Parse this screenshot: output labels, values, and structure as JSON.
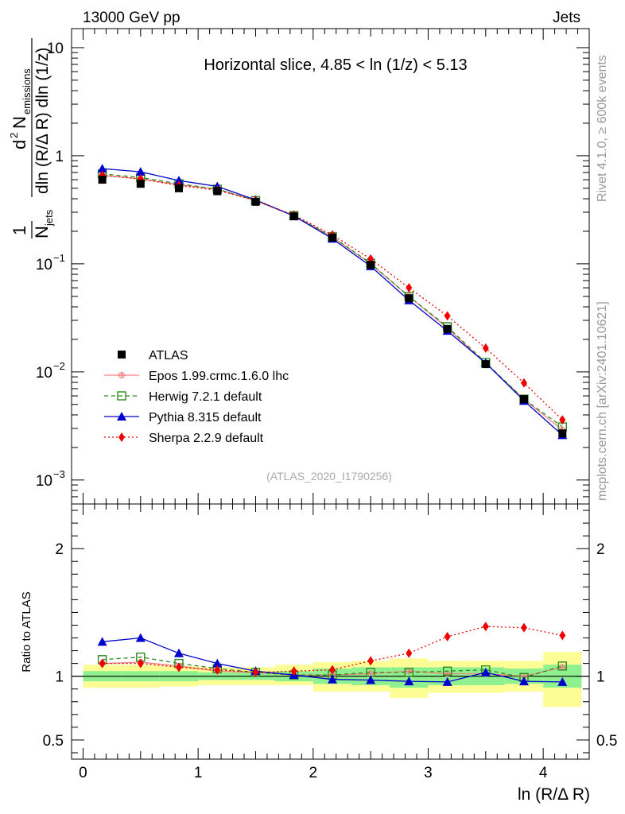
{
  "header": {
    "left": "13000 GeV pp",
    "right": "Jets"
  },
  "side_labels": {
    "rivet": "Rivet 4.1.0, ≥ 600k events",
    "mcplots": "mcplots.cern.ch [arXiv:2401.10621]"
  },
  "chart_data": [
    {
      "type": "line",
      "panel": "main",
      "title": "Horizontal slice, 4.85 < ln (1/z) < 5.13",
      "ylabel": "1/N_jets d²N_emissions / dln (R/Δ R) dln (1/z)",
      "ylabel_parts": {
        "frac": "1",
        "n": "N",
        "jets": "jets",
        "d2": "d",
        "two": "2",
        "nem": "N",
        "em": "emissions",
        "den": "dln (R/Δ R) dln (1/z)"
      },
      "yscale": "log",
      "ylim": [
        0.0006,
        15
      ],
      "xlim": [
        -0.1,
        4.4
      ],
      "yticks": [
        {
          "value": 0.001,
          "base": "10",
          "exp": "−3"
        },
        {
          "value": 0.01,
          "base": "10",
          "exp": "−2"
        },
        {
          "value": 0.1,
          "base": "10",
          "exp": "−1"
        },
        {
          "value": 1,
          "base": "1",
          "exp": ""
        },
        {
          "value": 10,
          "base": "10",
          "exp": ""
        }
      ],
      "watermark": "(ATLAS_2020_I1790256)",
      "x": [
        0.167,
        0.5,
        0.833,
        1.167,
        1.5,
        1.833,
        2.167,
        2.5,
        2.833,
        3.167,
        3.5,
        3.833,
        4.167
      ],
      "series": [
        {
          "name": "ATLAS",
          "color": "#000000",
          "marker": "square",
          "line": "none",
          "values": [
            0.6,
            0.55,
            0.5,
            0.47,
            0.375,
            0.275,
            0.175,
            0.098,
            0.048,
            0.025,
            0.0118,
            0.0056,
            0.0027
          ]
        },
        {
          "name": "Epos 1.99.crmc.1.6.0 lhc",
          "color": "#f08080",
          "marker": "plus",
          "line": "solid",
          "values": [
            0.66,
            0.61,
            0.54,
            0.49,
            0.385,
            0.278,
            0.177,
            0.1,
            0.05,
            0.0255,
            0.012,
            0.0056,
            0.0029
          ]
        },
        {
          "name": "Herwig 7.2.1 default",
          "color": "#2e8b1e",
          "marker": "open-square",
          "line": "dashed",
          "values": [
            0.68,
            0.63,
            0.55,
            0.49,
            0.385,
            0.279,
            0.178,
            0.101,
            0.05,
            0.0262,
            0.0122,
            0.0056,
            0.0031
          ]
        },
        {
          "name": "Pythia 8.315 default",
          "color": "#0000cc",
          "marker": "triangle",
          "line": "solid",
          "values": [
            0.76,
            0.71,
            0.59,
            0.52,
            0.39,
            0.277,
            0.171,
            0.095,
            0.046,
            0.024,
            0.0121,
            0.0054,
            0.0026
          ]
        },
        {
          "name": "Sherpa 2.2.9 default",
          "color": "#ee0000",
          "marker": "diamond",
          "line": "dotted",
          "values": [
            0.66,
            0.61,
            0.53,
            0.48,
            0.385,
            0.283,
            0.185,
            0.111,
            0.06,
            0.033,
            0.0166,
            0.0079,
            0.0036
          ]
        }
      ]
    },
    {
      "type": "line",
      "panel": "ratio",
      "ylabel": "Ratio to ATLAS",
      "xlabel": "ln (R/Δ R)",
      "ylim": [
        0.35,
        2.35
      ],
      "xlim": [
        -0.1,
        4.4
      ],
      "xticks": [
        0,
        1,
        2,
        3,
        4
      ],
      "xtick_labels": [
        "0",
        "1",
        "2",
        "3",
        "4"
      ],
      "yticks": [
        0.5,
        1,
        2
      ],
      "ytick_labels": [
        "0.5",
        "1",
        "2"
      ],
      "x": [
        0.167,
        0.5,
        0.833,
        1.167,
        1.5,
        1.833,
        2.167,
        2.5,
        2.833,
        3.167,
        3.5,
        3.833,
        4.167
      ],
      "band_yellow": {
        "lo": [
          0.91,
          0.91,
          0.92,
          0.93,
          0.93,
          0.93,
          0.88,
          0.88,
          0.83,
          0.87,
          0.87,
          0.88,
          0.76
        ],
        "hi": [
          1.09,
          1.09,
          1.08,
          1.07,
          1.07,
          1.09,
          1.11,
          1.12,
          1.14,
          1.12,
          1.12,
          1.12,
          1.19
        ]
      },
      "band_green": {
        "lo": [
          0.96,
          0.96,
          0.96,
          0.97,
          0.97,
          0.96,
          0.94,
          0.93,
          0.91,
          0.93,
          0.93,
          0.94,
          0.91
        ],
        "hi": [
          1.04,
          1.04,
          1.04,
          1.03,
          1.03,
          1.04,
          1.06,
          1.07,
          1.07,
          1.07,
          1.07,
          1.06,
          1.09
        ]
      },
      "series": [
        {
          "name": "Epos 1.99.crmc.1.6.0 lhc",
          "color": "#f08080",
          "marker": "plus",
          "line": "solid",
          "values": [
            1.1,
            1.11,
            1.08,
            1.04,
            1.03,
            1.01,
            1.01,
            1.02,
            1.04,
            1.02,
            1.02,
            1.0,
            1.07
          ]
        },
        {
          "name": "Herwig 7.2.1 default",
          "color": "#2e8b1e",
          "marker": "open-square",
          "line": "dashed",
          "values": [
            1.13,
            1.15,
            1.1,
            1.06,
            1.03,
            1.01,
            1.01,
            1.03,
            1.03,
            1.04,
            1.05,
            0.99,
            1.08
          ]
        },
        {
          "name": "Pythia 8.315 default",
          "color": "#0000cc",
          "marker": "triangle",
          "line": "solid",
          "values": [
            1.27,
            1.3,
            1.18,
            1.1,
            1.04,
            1.01,
            0.975,
            0.97,
            0.96,
            0.955,
            1.03,
            0.96,
            0.955
          ]
        },
        {
          "name": "Sherpa 2.2.9 default",
          "color": "#ee0000",
          "marker": "diamond",
          "line": "dotted",
          "values": [
            1.1,
            1.1,
            1.07,
            1.05,
            1.03,
            1.04,
            1.05,
            1.12,
            1.18,
            1.31,
            1.39,
            1.38,
            1.32
          ]
        }
      ]
    }
  ]
}
